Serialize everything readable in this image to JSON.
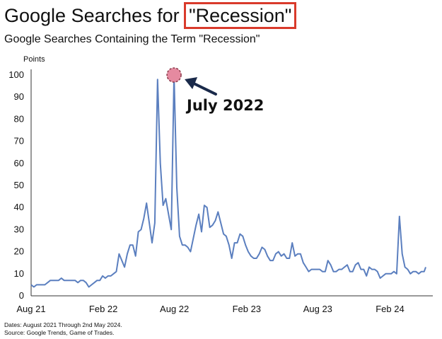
{
  "header": {
    "title_prefix": "Google Searches for",
    "title_highlight": "\"Recession\"",
    "subtitle": "Google Searches Containing the Term \"Recession\""
  },
  "footnotes": {
    "dates": "Dates: August 2021 Through 2nd May 2024.",
    "source": "Source: Google Trends, Game of Trades."
  },
  "colors": {
    "line": "#5b7fbf",
    "highlight_box": "#d93a2b",
    "marker_fill": "#e58aa0",
    "marker_stroke": "#8b3a4a"
  },
  "chart_data": {
    "type": "line",
    "ylabel": "Points",
    "ylim": [
      0,
      100
    ],
    "yticks": [
      0,
      10,
      20,
      30,
      40,
      50,
      60,
      70,
      80,
      90,
      100
    ],
    "xticks": [
      {
        "label": "Aug 21",
        "date": "2021-08-01"
      },
      {
        "label": "Feb 22",
        "date": "2022-02-01"
      },
      {
        "label": "Aug 22",
        "date": "2022-08-01"
      },
      {
        "label": "Feb 23",
        "date": "2023-02-01"
      },
      {
        "label": "Aug 23",
        "date": "2023-08-01"
      },
      {
        "label": "Feb 24",
        "date": "2024-02-01"
      }
    ],
    "grid": false,
    "series": [
      {
        "points": [
          [
            "2021-08-01",
            5
          ],
          [
            "2021-08-08",
            4
          ],
          [
            "2021-08-15",
            5
          ],
          [
            "2021-08-22",
            5
          ],
          [
            "2021-08-29",
            5
          ],
          [
            "2021-09-05",
            5
          ],
          [
            "2021-09-12",
            6
          ],
          [
            "2021-09-19",
            7
          ],
          [
            "2021-09-26",
            7
          ],
          [
            "2021-10-03",
            7
          ],
          [
            "2021-10-10",
            7
          ],
          [
            "2021-10-17",
            8
          ],
          [
            "2021-10-24",
            7
          ],
          [
            "2021-10-31",
            7
          ],
          [
            "2021-11-07",
            7
          ],
          [
            "2021-11-14",
            7
          ],
          [
            "2021-11-21",
            7
          ],
          [
            "2021-11-28",
            6
          ],
          [
            "2021-12-05",
            7
          ],
          [
            "2021-12-12",
            7
          ],
          [
            "2021-12-19",
            6
          ],
          [
            "2021-12-26",
            4
          ],
          [
            "2022-01-02",
            5
          ],
          [
            "2022-01-09",
            6
          ],
          [
            "2022-01-16",
            7
          ],
          [
            "2022-01-23",
            7
          ],
          [
            "2022-01-30",
            9
          ],
          [
            "2022-02-06",
            8
          ],
          [
            "2022-02-13",
            9
          ],
          [
            "2022-02-20",
            9
          ],
          [
            "2022-02-27",
            10
          ],
          [
            "2022-03-06",
            11
          ],
          [
            "2022-03-13",
            19
          ],
          [
            "2022-03-20",
            16
          ],
          [
            "2022-03-27",
            13
          ],
          [
            "2022-04-03",
            19
          ],
          [
            "2022-04-10",
            23
          ],
          [
            "2022-04-17",
            23
          ],
          [
            "2022-04-24",
            18
          ],
          [
            "2022-05-01",
            29
          ],
          [
            "2022-05-08",
            30
          ],
          [
            "2022-05-15",
            35
          ],
          [
            "2022-05-22",
            42
          ],
          [
            "2022-05-29",
            33
          ],
          [
            "2022-06-05",
            24
          ],
          [
            "2022-06-12",
            33
          ],
          [
            "2022-06-19",
            98
          ],
          [
            "2022-06-26",
            60
          ],
          [
            "2022-07-03",
            41
          ],
          [
            "2022-07-10",
            44
          ],
          [
            "2022-07-17",
            37
          ],
          [
            "2022-07-24",
            30
          ],
          [
            "2022-07-31",
            100
          ],
          [
            "2022-08-07",
            49
          ],
          [
            "2022-08-14",
            27
          ],
          [
            "2022-08-21",
            23
          ],
          [
            "2022-08-28",
            23
          ],
          [
            "2022-09-04",
            22
          ],
          [
            "2022-09-11",
            20
          ],
          [
            "2022-09-18",
            26
          ],
          [
            "2022-09-25",
            32
          ],
          [
            "2022-10-02",
            37
          ],
          [
            "2022-10-09",
            29
          ],
          [
            "2022-10-16",
            41
          ],
          [
            "2022-10-23",
            40
          ],
          [
            "2022-10-30",
            31
          ],
          [
            "2022-11-06",
            32
          ],
          [
            "2022-11-13",
            34
          ],
          [
            "2022-11-20",
            38
          ],
          [
            "2022-11-27",
            33
          ],
          [
            "2022-12-04",
            28
          ],
          [
            "2022-12-11",
            27
          ],
          [
            "2022-12-18",
            23
          ],
          [
            "2022-12-25",
            17
          ],
          [
            "2023-01-01",
            24
          ],
          [
            "2023-01-08",
            24
          ],
          [
            "2023-01-15",
            28
          ],
          [
            "2023-01-22",
            27
          ],
          [
            "2023-01-29",
            23
          ],
          [
            "2023-02-05",
            20
          ],
          [
            "2023-02-12",
            18
          ],
          [
            "2023-02-19",
            17
          ],
          [
            "2023-02-26",
            17
          ],
          [
            "2023-03-05",
            19
          ],
          [
            "2023-03-12",
            22
          ],
          [
            "2023-03-19",
            21
          ],
          [
            "2023-03-26",
            18
          ],
          [
            "2023-04-02",
            16
          ],
          [
            "2023-04-09",
            16
          ],
          [
            "2023-04-16",
            19
          ],
          [
            "2023-04-23",
            20
          ],
          [
            "2023-04-30",
            18
          ],
          [
            "2023-05-07",
            19
          ],
          [
            "2023-05-14",
            17
          ],
          [
            "2023-05-21",
            17
          ],
          [
            "2023-05-28",
            24
          ],
          [
            "2023-06-04",
            18
          ],
          [
            "2023-06-11",
            19
          ],
          [
            "2023-06-18",
            19
          ],
          [
            "2023-06-25",
            15
          ],
          [
            "2023-07-02",
            13
          ],
          [
            "2023-07-09",
            11
          ],
          [
            "2023-07-16",
            12
          ],
          [
            "2023-07-23",
            12
          ],
          [
            "2023-07-30",
            12
          ],
          [
            "2023-08-06",
            12
          ],
          [
            "2023-08-13",
            11
          ],
          [
            "2023-08-20",
            11
          ],
          [
            "2023-08-27",
            16
          ],
          [
            "2023-09-03",
            14
          ],
          [
            "2023-09-10",
            11
          ],
          [
            "2023-09-17",
            11
          ],
          [
            "2023-09-24",
            12
          ],
          [
            "2023-10-01",
            12
          ],
          [
            "2023-10-08",
            13
          ],
          [
            "2023-10-15",
            14
          ],
          [
            "2023-10-22",
            11
          ],
          [
            "2023-10-29",
            11
          ],
          [
            "2023-11-05",
            14
          ],
          [
            "2023-11-12",
            15
          ],
          [
            "2023-11-19",
            12
          ],
          [
            "2023-11-26",
            12
          ],
          [
            "2023-12-03",
            9
          ],
          [
            "2023-12-10",
            13
          ],
          [
            "2023-12-17",
            12
          ],
          [
            "2023-12-24",
            12
          ],
          [
            "2023-12-31",
            11
          ],
          [
            "2024-01-07",
            8
          ],
          [
            "2024-01-14",
            9
          ],
          [
            "2024-01-21",
            10
          ],
          [
            "2024-01-28",
            10
          ],
          [
            "2024-02-04",
            10
          ],
          [
            "2024-02-11",
            11
          ],
          [
            "2024-02-18",
            10
          ],
          [
            "2024-02-25",
            36
          ],
          [
            "2024-03-03",
            19
          ],
          [
            "2024-03-10",
            13
          ],
          [
            "2024-03-17",
            12
          ],
          [
            "2024-03-24",
            10
          ],
          [
            "2024-03-31",
            11
          ],
          [
            "2024-04-07",
            11
          ],
          [
            "2024-04-14",
            10
          ],
          [
            "2024-04-21",
            11
          ],
          [
            "2024-04-28",
            11
          ],
          [
            "2024-05-02",
            13
          ]
        ]
      }
    ],
    "annotations": [
      {
        "text": "July 2022",
        "date": "2022-07-31",
        "value": 100,
        "marker": "circle",
        "arrow": true
      }
    ]
  }
}
